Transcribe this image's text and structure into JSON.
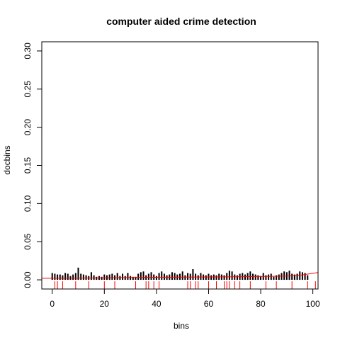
{
  "chart_data": {
    "type": "bar",
    "title": "computer aided crime detection",
    "xlabel": "bins",
    "ylabel": "docbins",
    "xlim": [
      -4,
      102
    ],
    "ylim": [
      -0.012,
      0.312
    ],
    "x_ticks": [
      "0",
      "20",
      "40",
      "60",
      "80",
      "100"
    ],
    "y_ticks": [
      "0.00",
      "0.05",
      "0.10",
      "0.15",
      "0.20",
      "0.25",
      "0.30"
    ],
    "bar_color": "#000000",
    "trend_color": "#ff0000",
    "rug_color": "#ff0000",
    "x": [
      0,
      1,
      2,
      3,
      4,
      5,
      6,
      7,
      8,
      9,
      10,
      11,
      12,
      13,
      14,
      15,
      16,
      17,
      18,
      19,
      20,
      21,
      22,
      23,
      24,
      25,
      26,
      27,
      28,
      29,
      30,
      31,
      32,
      33,
      34,
      35,
      36,
      37,
      38,
      39,
      40,
      41,
      42,
      43,
      44,
      45,
      46,
      47,
      48,
      49,
      50,
      51,
      52,
      53,
      54,
      55,
      56,
      57,
      58,
      59,
      60,
      61,
      62,
      63,
      64,
      65,
      66,
      67,
      68,
      69,
      70,
      71,
      72,
      73,
      74,
      75,
      76,
      77,
      78,
      79,
      80,
      81,
      82,
      83,
      84,
      85,
      86,
      87,
      88,
      89,
      90,
      91,
      92,
      93,
      94,
      95,
      96,
      97,
      98
    ],
    "values": [
      0.009,
      0.008,
      0.007,
      0.007,
      0.006,
      0.009,
      0.008,
      0.005,
      0.007,
      0.009,
      0.016,
      0.008,
      0.007,
      0.006,
      0.005,
      0.01,
      0.006,
      0.004,
      0.005,
      0.004,
      0.007,
      0.006,
      0.007,
      0.008,
      0.006,
      0.009,
      0.005,
      0.008,
      0.005,
      0.009,
      0.005,
      0.004,
      0.004,
      0.008,
      0.01,
      0.011,
      0.006,
      0.008,
      0.01,
      0.007,
      0.005,
      0.009,
      0.011,
      0.008,
      0.006,
      0.007,
      0.01,
      0.009,
      0.007,
      0.008,
      0.011,
      0.006,
      0.009,
      0.008,
      0.014,
      0.008,
      0.006,
      0.009,
      0.007,
      0.006,
      0.008,
      0.006,
      0.007,
      0.006,
      0.008,
      0.007,
      0.006,
      0.009,
      0.012,
      0.011,
      0.007,
      0.006,
      0.008,
      0.009,
      0.007,
      0.009,
      0.011,
      0.008,
      0.007,
      0.006,
      0.005,
      0.009,
      0.006,
      0.007,
      0.008,
      0.004,
      0.006,
      0.007,
      0.009,
      0.011,
      0.01,
      0.012,
      0.008,
      0.007,
      0.008,
      0.011,
      0.01,
      0.009,
      0.006
    ],
    "trend": {
      "x": [
        -4,
        10,
        20,
        30,
        40,
        50,
        60,
        70,
        80,
        90,
        96,
        102
      ],
      "y": [
        0.002,
        0.0023,
        0.0027,
        0.003,
        0.0033,
        0.0036,
        0.0038,
        0.004,
        0.0043,
        0.005,
        0.0065,
        0.0095
      ]
    },
    "rug": [
      1,
      2,
      4,
      9,
      14,
      20,
      24,
      32,
      36,
      37,
      39,
      41,
      52,
      53,
      55,
      56,
      60,
      63,
      66,
      67,
      68,
      70,
      72,
      76,
      82,
      86,
      92,
      98,
      101
    ]
  }
}
